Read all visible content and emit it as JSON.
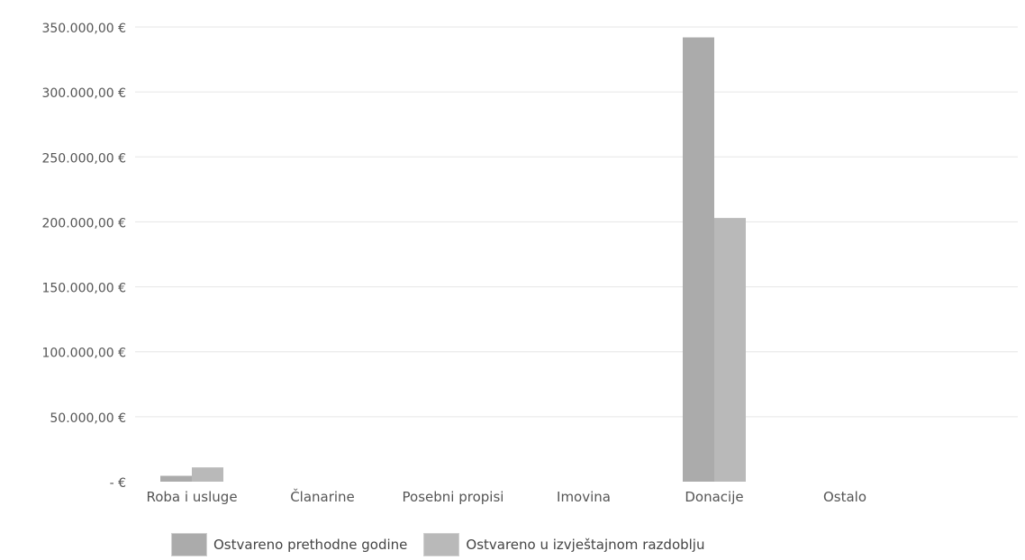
{
  "chart_data": {
    "type": "bar",
    "categories": [
      "Roba i usluge",
      "Članarine",
      "Posebni propisi",
      "Imovina",
      "Donacije",
      "Ostalo"
    ],
    "series": [
      {
        "name": "Ostvareno prethodne godine",
        "values": [
          4500,
          0,
          0,
          0,
          342000,
          0
        ],
        "color": "#ababab"
      },
      {
        "name": "Ostvareno u izvještajnom razdoblju",
        "values": [
          11000,
          0,
          0,
          0,
          203000,
          0
        ],
        "color": "#b9b9b9"
      }
    ],
    "yticks": [
      "-  €",
      "50.000,00 €",
      "100.000,00 €",
      "150.000,00 €",
      "200.000,00 €",
      "250.000,00 €",
      "300.000,00 €",
      "350.000,00 €"
    ],
    "ylim": [
      0,
      350000
    ],
    "grid": true,
    "legend_position": "bottom",
    "title": "",
    "xlabel": "",
    "ylabel": ""
  }
}
